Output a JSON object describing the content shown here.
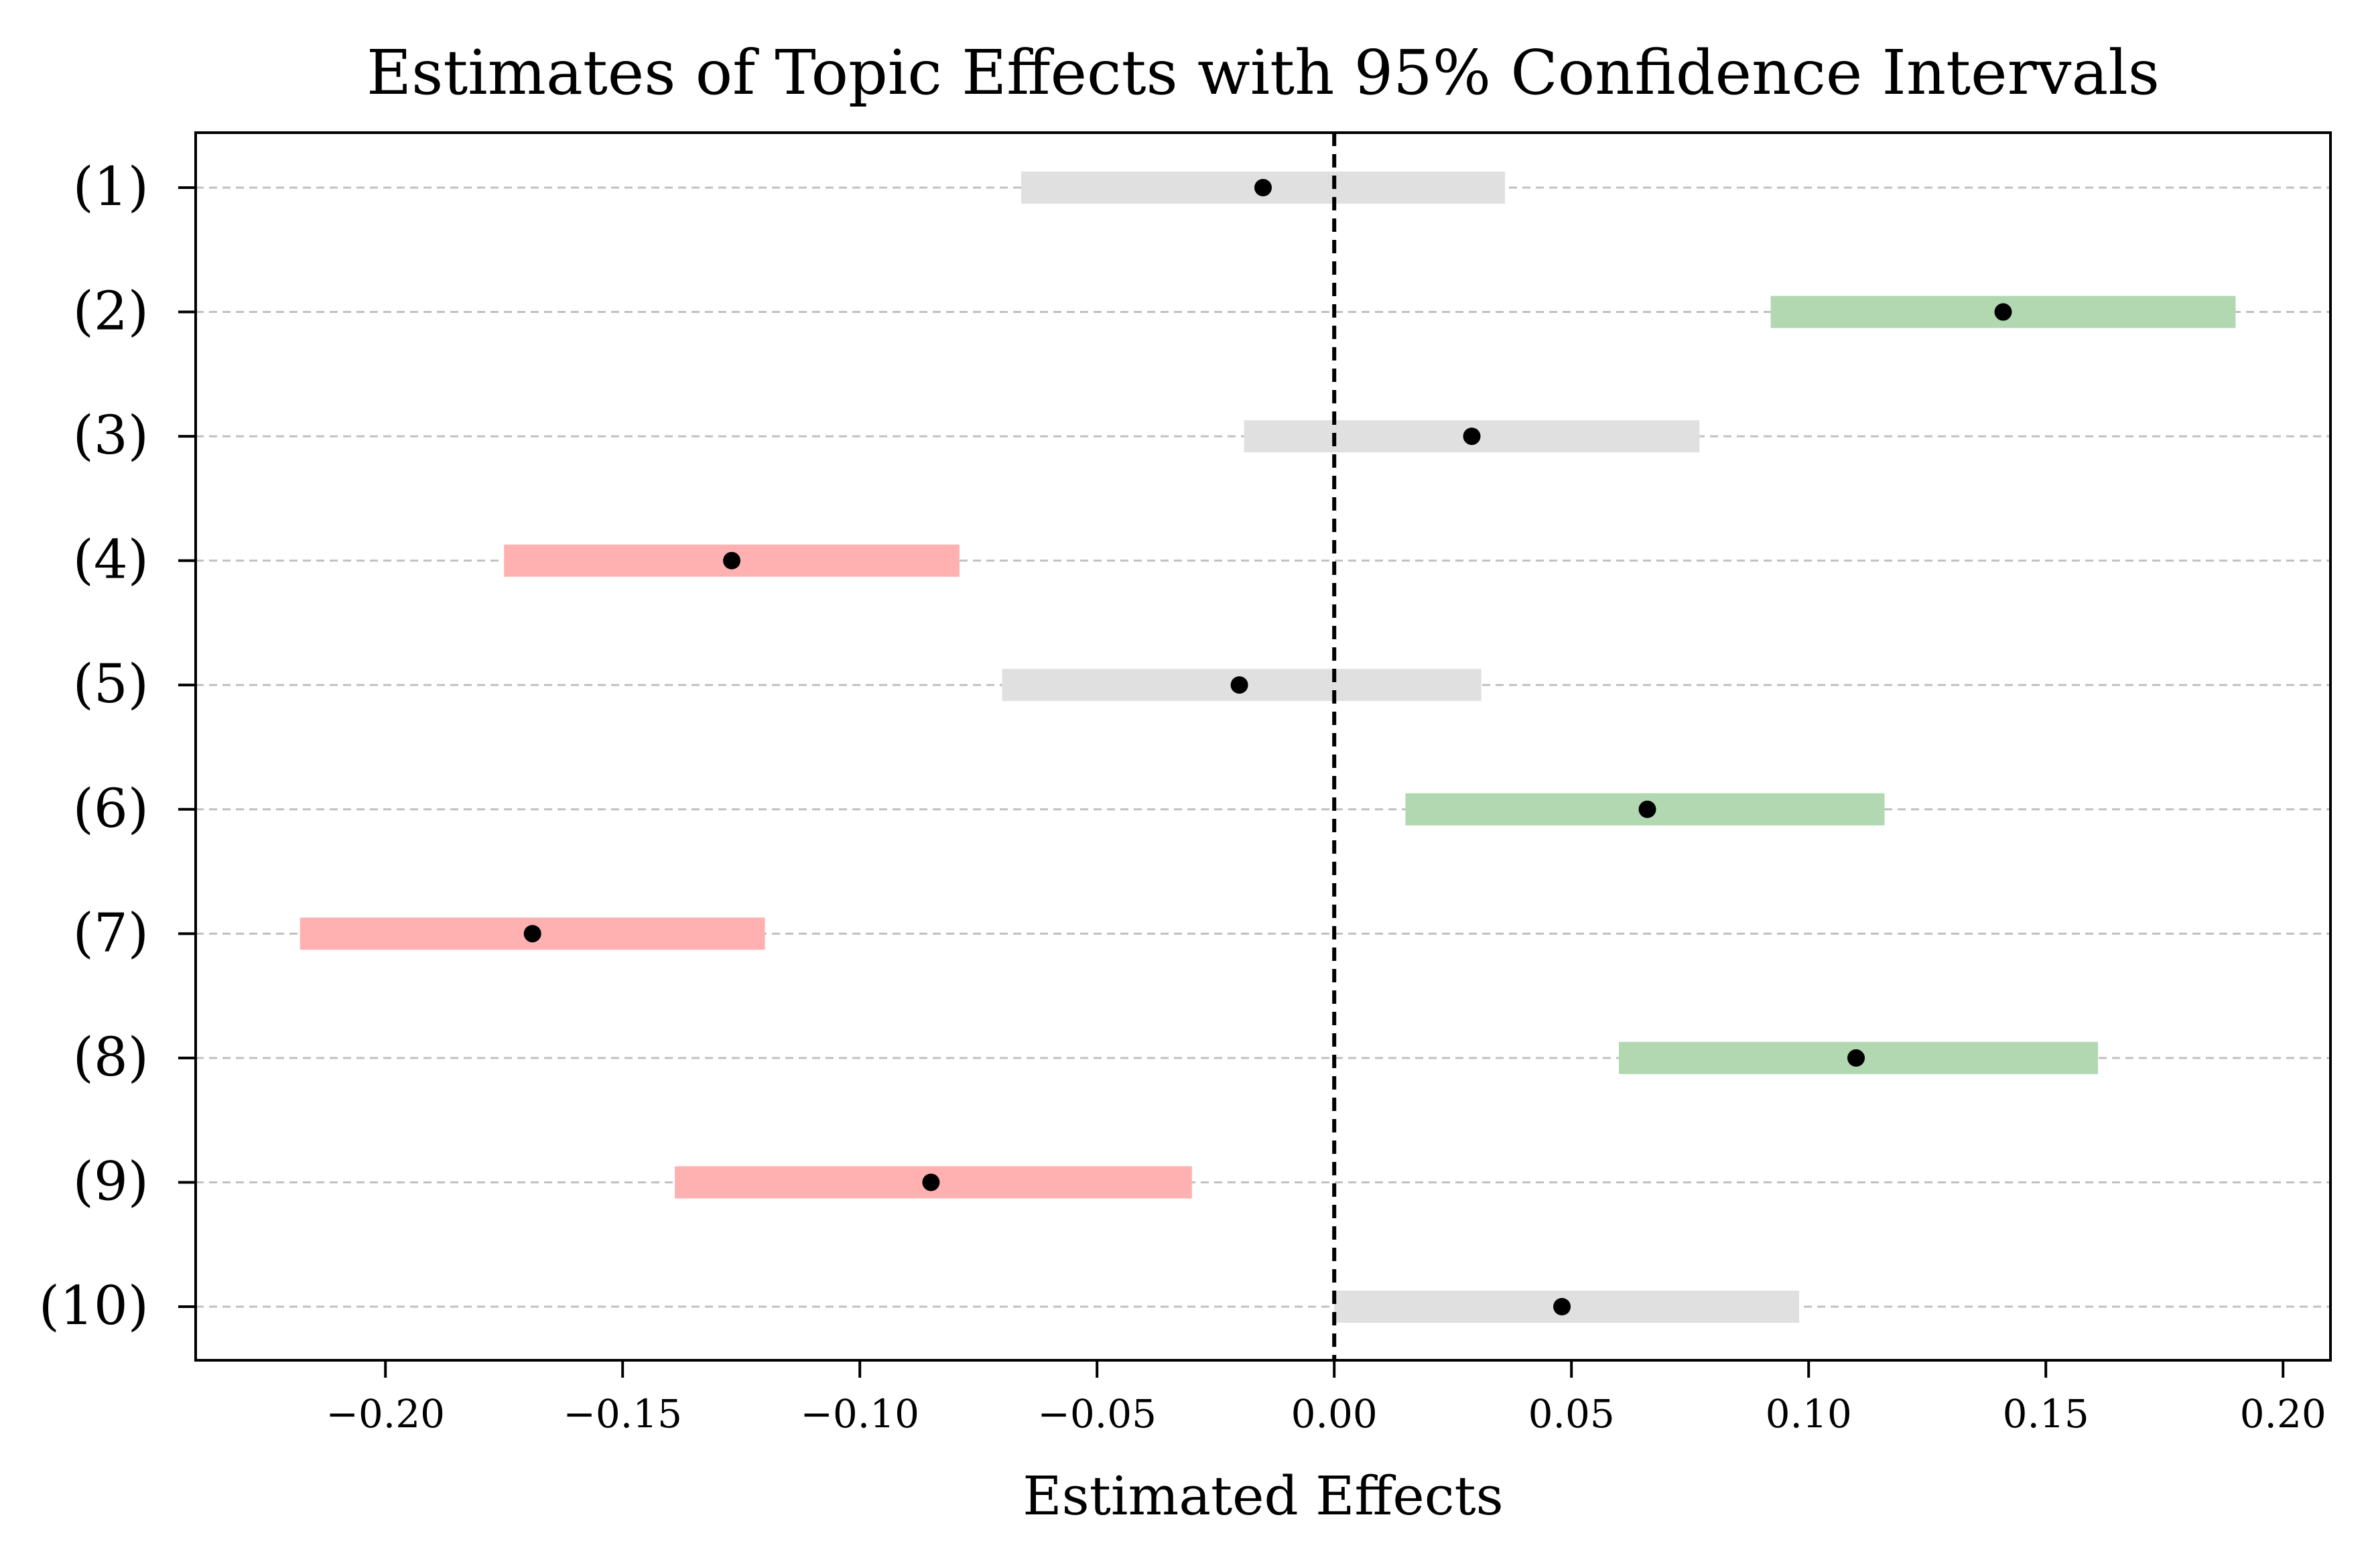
{
  "chart_data": {
    "type": "forest",
    "title": "Estimates of Topic Effects with 95% Confidence Intervals",
    "xlabel": "Estimated Effects",
    "ylabel": "",
    "xlim": [
      -0.24,
      0.21
    ],
    "xticks": [
      -0.2,
      -0.15,
      -0.1,
      -0.05,
      0.0,
      0.05,
      0.1,
      0.15,
      0.2
    ],
    "xtick_labels": [
      "−0.20",
      "−0.15",
      "−0.10",
      "−0.05",
      "0.00",
      "0.05",
      "0.10",
      "0.15",
      "0.20"
    ],
    "reference_line": 0.0,
    "grid": "horizontal dashed",
    "categories": [
      "(1)",
      "(2)",
      "(3)",
      "(4)",
      "(5)",
      "(6)",
      "(7)",
      "(8)",
      "(9)",
      "(10)"
    ],
    "estimates": [
      -0.015,
      0.141,
      0.029,
      -0.127,
      -0.02,
      0.066,
      -0.169,
      0.11,
      -0.085,
      0.048
    ],
    "lower": [
      -0.066,
      0.092,
      -0.019,
      -0.175,
      -0.07,
      0.015,
      -0.218,
      0.06,
      -0.139,
      0.0
    ],
    "upper": [
      0.036,
      0.19,
      0.077,
      -0.079,
      0.031,
      0.116,
      -0.12,
      0.161,
      -0.03,
      0.098
    ],
    "colors": {
      "significant_positive": "#b2d8b2",
      "significant_negative": "#ffb0b0",
      "not_significant": "#e0e0e0",
      "point": "#000000",
      "reference_line": "#000000",
      "grid": "#c0c0c0"
    }
  }
}
